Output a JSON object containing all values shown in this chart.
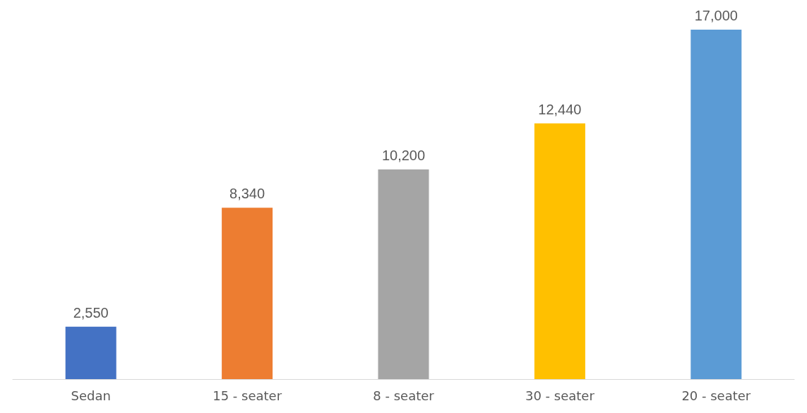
{
  "chart_data": {
    "type": "bar",
    "categories": [
      "Sedan",
      "15 - seater",
      "8 - seater",
      "30 - seater",
      "20 - seater"
    ],
    "values": [
      2550,
      8340,
      10200,
      12440,
      17000
    ],
    "value_labels": [
      "2,550",
      "8,340",
      "10,200",
      "12,440",
      "17,000"
    ],
    "colors": [
      "#4472c4",
      "#ed7d31",
      "#a5a5a5",
      "#ffc000",
      "#5b9bd5"
    ]
  }
}
